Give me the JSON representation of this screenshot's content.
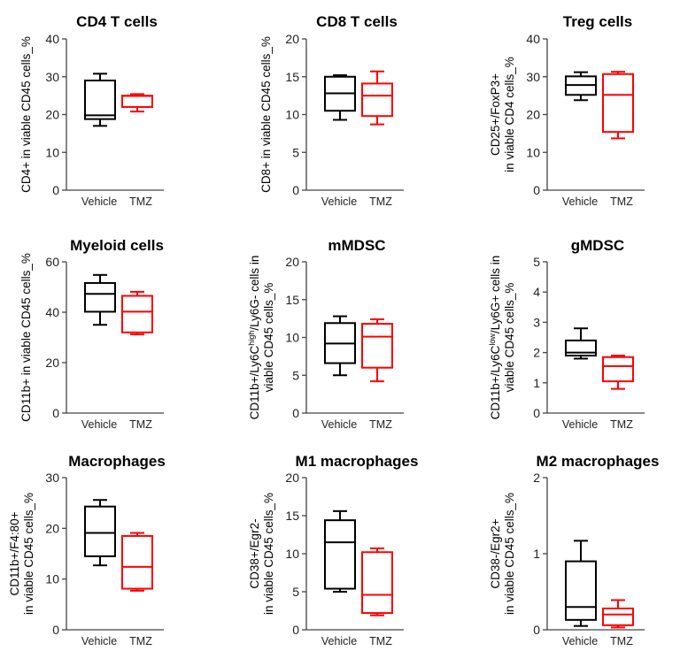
{
  "chart_data": [
    {
      "type": "box",
      "title": "CD4 T cells",
      "ylabel_lines": [
        [
          {
            "t": "CD4+ in viable CD45 cells_%"
          }
        ]
      ],
      "ylim": [
        0,
        40
      ],
      "yticks": [
        "0",
        "10",
        "20",
        "30",
        "40"
      ],
      "categories": [
        "Vehicle",
        "TMZ"
      ],
      "series": [
        {
          "min": 17,
          "q1": 18.8,
          "median": 19.8,
          "q3": 29,
          "max": 30.8
        },
        {
          "min": 20.8,
          "q1": 22,
          "median": 24.9,
          "q3": 25,
          "max": 25.4
        }
      ]
    },
    {
      "type": "box",
      "title": "CD8 T cells",
      "ylabel_lines": [
        [
          {
            "t": "CD8+ in viable CD45 cells_%"
          }
        ]
      ],
      "ylim": [
        0,
        20
      ],
      "yticks": [
        "0",
        "5",
        "10",
        "15",
        "20"
      ],
      "categories": [
        "Vehicle",
        "TMZ"
      ],
      "series": [
        {
          "min": 9.3,
          "q1": 10.5,
          "median": 12.8,
          "q3": 15,
          "max": 15.2
        },
        {
          "min": 8.7,
          "q1": 9.8,
          "median": 12.5,
          "q3": 14.1,
          "max": 15.7
        }
      ]
    },
    {
      "type": "box",
      "title": "Treg cells",
      "ylabel_lines": [
        [
          {
            "t": "CD25+/FoxP3+"
          }
        ],
        [
          {
            "t": "in viable CD4 cells_%"
          }
        ]
      ],
      "ylim": [
        0,
        40
      ],
      "yticks": [
        "0",
        "10",
        "20",
        "30",
        "40"
      ],
      "categories": [
        "Vehicle",
        "TMZ"
      ],
      "series": [
        {
          "min": 23.8,
          "q1": 25.2,
          "median": 27.8,
          "q3": 30.1,
          "max": 31.2
        },
        {
          "min": 13.7,
          "q1": 15.4,
          "median": 25.2,
          "q3": 30.7,
          "max": 31.3
        }
      ]
    },
    {
      "type": "box",
      "title": "Myeloid cells",
      "ylabel_lines": [
        [
          {
            "t": "CD11b+ in viable CD45 cells_%"
          }
        ]
      ],
      "ylim": [
        0,
        60
      ],
      "yticks": [
        "0",
        "20",
        "40",
        "60"
      ],
      "categories": [
        "Vehicle",
        "TMZ"
      ],
      "series": [
        {
          "min": 35,
          "q1": 40.2,
          "median": 47.3,
          "q3": 51.6,
          "max": 54.8
        },
        {
          "min": 31.2,
          "q1": 32,
          "median": 40.2,
          "q3": 46.5,
          "max": 48.1
        }
      ]
    },
    {
      "type": "box",
      "title": "mMDSC",
      "ylabel_lines": [
        [
          {
            "t": "CD11b+/Ly6C"
          },
          {
            "t": "high",
            "sup": true
          },
          {
            "t": "/Ly6G- cells in"
          }
        ],
        [
          {
            "t": "viable CD45 cells_%"
          }
        ]
      ],
      "ylim": [
        0,
        20
      ],
      "yticks": [
        "0",
        "5",
        "10",
        "15",
        "20"
      ],
      "categories": [
        "Vehicle",
        "TMZ"
      ],
      "series": [
        {
          "min": 5,
          "q1": 6.6,
          "median": 9.2,
          "q3": 11.9,
          "max": 12.8
        },
        {
          "min": 4.2,
          "q1": 6,
          "median": 10.1,
          "q3": 11.8,
          "max": 12.4
        }
      ]
    },
    {
      "type": "box",
      "title": "gMDSC",
      "ylabel_lines": [
        [
          {
            "t": "CD11b+/Ly6C"
          },
          {
            "t": "low",
            "sup": true
          },
          {
            "t": "/Ly6G+ cells in"
          }
        ],
        [
          {
            "t": "viable CD45 cells_%"
          }
        ]
      ],
      "ylim": [
        0,
        5
      ],
      "yticks": [
        "0",
        "1",
        "2",
        "3",
        "4",
        "5"
      ],
      "categories": [
        "Vehicle",
        "TMZ"
      ],
      "series": [
        {
          "min": 1.8,
          "q1": 1.9,
          "median": 2.0,
          "q3": 2.4,
          "max": 2.8
        },
        {
          "min": 0.8,
          "q1": 1.05,
          "median": 1.55,
          "q3": 1.85,
          "max": 1.9
        }
      ]
    },
    {
      "type": "box",
      "title": "Macrophages",
      "ylabel_lines": [
        [
          {
            "t": "CD11b+/F4:80+"
          }
        ],
        [
          {
            "t": "in viable CD45 cells_%"
          }
        ]
      ],
      "ylim": [
        0,
        30
      ],
      "yticks": [
        "0",
        "10",
        "20",
        "30"
      ],
      "categories": [
        "Vehicle",
        "TMZ"
      ],
      "series": [
        {
          "min": 12.7,
          "q1": 14.5,
          "median": 19.1,
          "q3": 24.3,
          "max": 25.6
        },
        {
          "min": 7.7,
          "q1": 8.1,
          "median": 12.4,
          "q3": 18.5,
          "max": 19.1
        }
      ]
    },
    {
      "type": "box",
      "title": "M1 macrophages",
      "ylabel_lines": [
        [
          {
            "t": "CD38+/Egr2-"
          }
        ],
        [
          {
            "t": "in viable CD45 cells_%"
          }
        ]
      ],
      "ylim": [
        0,
        20
      ],
      "yticks": [
        "0",
        "5",
        "10",
        "15",
        "20"
      ],
      "categories": [
        "Vehicle",
        "TMZ"
      ],
      "series": [
        {
          "min": 5,
          "q1": 5.4,
          "median": 11.5,
          "q3": 14.4,
          "max": 15.6
        },
        {
          "min": 1.9,
          "q1": 2.2,
          "median": 4.6,
          "q3": 10.2,
          "max": 10.7
        }
      ]
    },
    {
      "type": "box",
      "title": "M2 macrophages",
      "ylabel_lines": [
        [
          {
            "t": "CD38-/Egr2+"
          }
        ],
        [
          {
            "t": "in viable CD45 cells_%"
          }
        ]
      ],
      "ylim": [
        0,
        2
      ],
      "yticks": [
        "0",
        "1",
        "2"
      ],
      "categories": [
        "Vehicle",
        "TMZ"
      ],
      "series": [
        {
          "min": 0.05,
          "q1": 0.13,
          "median": 0.3,
          "q3": 0.9,
          "max": 1.17
        },
        {
          "min": 0.03,
          "q1": 0.06,
          "median": 0.2,
          "q3": 0.28,
          "max": 0.39
        }
      ]
    }
  ],
  "colors": {
    "Vehicle": "#000000",
    "TMZ": "#ff0000"
  },
  "grid": false,
  "legend": "none"
}
